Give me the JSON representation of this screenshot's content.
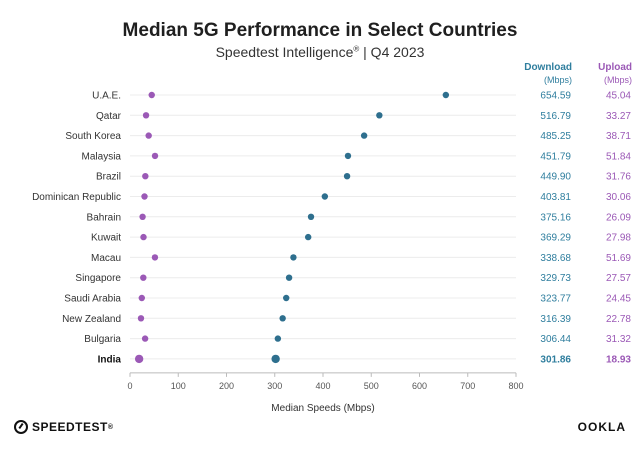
{
  "chart_data": {
    "type": "scatter",
    "title": "Median 5G Performance in Select Countries",
    "subtitle_brand": "Speedtest Intelligence",
    "subtitle_mark": "®",
    "subtitle_period": "| Q4 2023",
    "xlabel": "Median Speeds (Mbps)",
    "xlim": [
      0,
      800
    ],
    "xticks": [
      0,
      100,
      200,
      300,
      400,
      500,
      600,
      700,
      800
    ],
    "columns": {
      "download_label": "Download",
      "download_unit": "(Mbps)",
      "upload_label": "Upload",
      "upload_unit": "(Mbps)"
    },
    "colors": {
      "download": "#2e6f8e",
      "upload": "#9b59b6"
    },
    "highlight": "India",
    "rows": [
      {
        "country": "U.A.E.",
        "download": 654.59,
        "upload": 45.04,
        "download_label": "654.59",
        "upload_label": "45.04"
      },
      {
        "country": "Qatar",
        "download": 516.79,
        "upload": 33.27,
        "download_label": "516.79",
        "upload_label": "33.27"
      },
      {
        "country": "South Korea",
        "download": 485.25,
        "upload": 38.71,
        "download_label": "485.25",
        "upload_label": "38.71"
      },
      {
        "country": "Malaysia",
        "download": 451.79,
        "upload": 51.84,
        "download_label": "451.79",
        "upload_label": "51.84"
      },
      {
        "country": "Brazil",
        "download": 449.9,
        "upload": 31.76,
        "download_label": "449.90",
        "upload_label": "31.76"
      },
      {
        "country": "Dominican Republic",
        "download": 403.81,
        "upload": 30.06,
        "download_label": "403.81",
        "upload_label": "30.06"
      },
      {
        "country": "Bahrain",
        "download": 375.16,
        "upload": 26.09,
        "download_label": "375.16",
        "upload_label": "26.09"
      },
      {
        "country": "Kuwait",
        "download": 369.29,
        "upload": 27.98,
        "download_label": "369.29",
        "upload_label": "27.98"
      },
      {
        "country": "Macau",
        "download": 338.68,
        "upload": 51.69,
        "download_label": "338.68",
        "upload_label": "51.69"
      },
      {
        "country": "Singapore",
        "download": 329.73,
        "upload": 27.57,
        "download_label": "329.73",
        "upload_label": "27.57"
      },
      {
        "country": "Saudi Arabia",
        "download": 323.77,
        "upload": 24.45,
        "download_label": "323.77",
        "upload_label": "24.45"
      },
      {
        "country": "New Zealand",
        "download": 316.39,
        "upload": 22.78,
        "download_label": "316.39",
        "upload_label": "22.78"
      },
      {
        "country": "Bulgaria",
        "download": 306.44,
        "upload": 31.32,
        "download_label": "306.44",
        "upload_label": "31.32"
      },
      {
        "country": "India",
        "download": 301.86,
        "upload": 18.93,
        "download_label": "301.86",
        "upload_label": "18.93"
      }
    ]
  },
  "footer": {
    "left_brand": "SPEEDTEST",
    "left_mark": "®",
    "right_brand": "OOKLA"
  }
}
